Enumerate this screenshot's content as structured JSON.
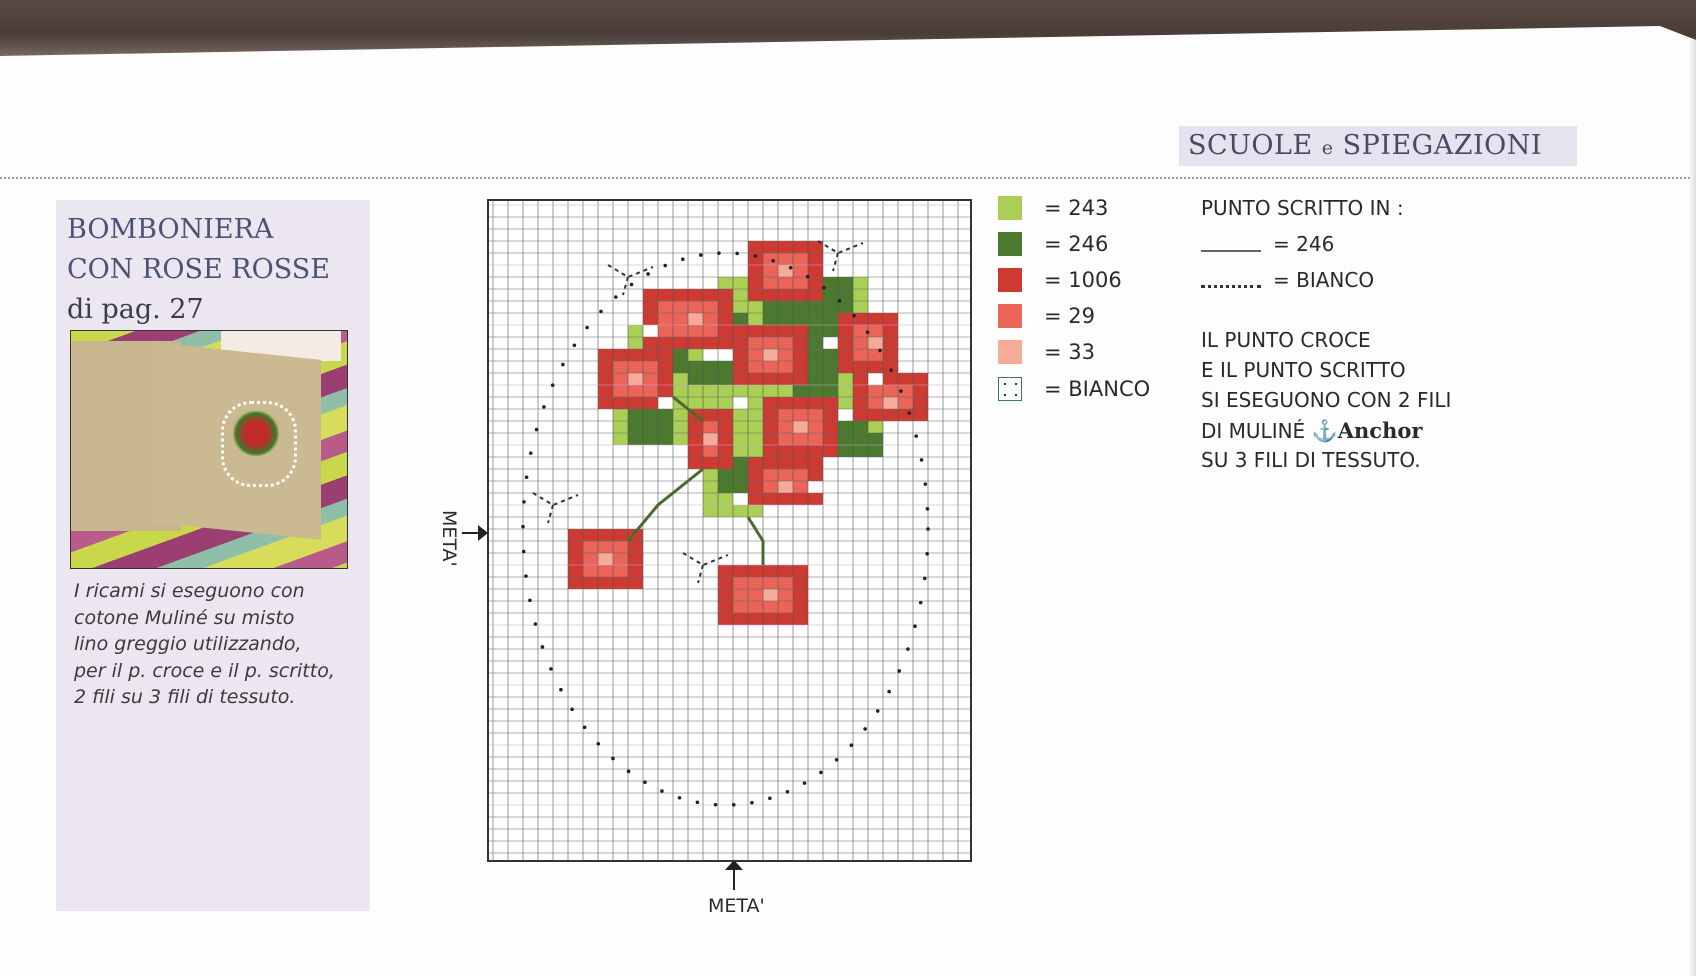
{
  "header": {
    "title_part1": "SCUOLE",
    "title_conj": "e",
    "title_part2": "SPIEGAZIONI"
  },
  "left_panel": {
    "title_line1": "BOMBONIERA",
    "title_line2": "CON ROSE ROSSE",
    "page_ref": "di pag. 27",
    "caption_lines": [
      "I ricami si eseguono con",
      "cotone Muliné su misto",
      "lino greggio utilizzando,",
      "per il p. croce e il p. scritto,",
      "2 fili su 3 fili di tessuto."
    ]
  },
  "chart": {
    "meta_left": "META'",
    "meta_bottom": "META'"
  },
  "legend": [
    {
      "label": "= 243",
      "color": "#a9cf54"
    },
    {
      "label": "= 246",
      "color": "#4b7a2e"
    },
    {
      "label": "= 1006",
      "color": "#cc3a32"
    },
    {
      "label": "= 29",
      "color": "#ea6458"
    },
    {
      "label": "= 33",
      "color": "#f6aa98"
    },
    {
      "label": "= BIANCO",
      "color": "#ffffff"
    }
  ],
  "backstitch": {
    "heading": "PUNTO SCRITTO IN :",
    "solid_label": "= 246",
    "dotted_label": "= BIANCO"
  },
  "instructions": {
    "line1": "IL PUNTO CROCE",
    "line2": "E IL PUNTO SCRITTO",
    "line3": "SI ESEGUONO CON 2 FILI",
    "line4_prefix": "DI MULINÉ",
    "brand": "Anchor",
    "line5": "SU 3 FILI DI TESSUTO."
  }
}
